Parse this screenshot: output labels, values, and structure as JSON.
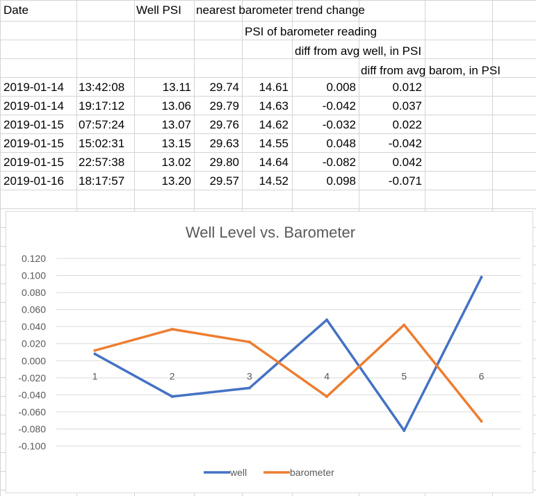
{
  "sheet": {
    "header_row_1": [
      "Date",
      "",
      "Well PSI",
      "nearest barometer trend change"
    ],
    "header_row_2": "PSI of barometer reading",
    "header_row_3": "diff from avg well, in PSI",
    "header_row_4": "diff from avg barom, in PSI",
    "rows": [
      [
        "2019-01-14",
        "13:42:08",
        "13.11",
        "29.74",
        "14.61",
        "0.008",
        "0.012"
      ],
      [
        "2019-01-14",
        "19:17:12",
        "13.06",
        "29.79",
        "14.63",
        "-0.042",
        "0.037"
      ],
      [
        "2019-01-15",
        "07:57:24",
        "13.07",
        "29.76",
        "14.62",
        "-0.032",
        "0.022"
      ],
      [
        "2019-01-15",
        "15:02:31",
        "13.15",
        "29.63",
        "14.55",
        "0.048",
        "-0.042"
      ],
      [
        "2019-01-15",
        "22:57:38",
        "13.02",
        "29.80",
        "14.64",
        "-0.082",
        "0.042"
      ],
      [
        "2019-01-16",
        "18:17:57",
        "13.20",
        "29.57",
        "14.52",
        "0.098",
        "-0.071"
      ]
    ]
  },
  "chart_data": {
    "type": "line",
    "title": "Well Level vs. Barometer",
    "x": [
      "1",
      "2",
      "3",
      "4",
      "5",
      "6"
    ],
    "ylim": [
      -0.1,
      0.12
    ],
    "y_ticks": [
      "0.120",
      "0.100",
      "0.080",
      "0.060",
      "0.040",
      "0.020",
      "0.000",
      "-0.020",
      "-0.040",
      "-0.060",
      "-0.080",
      "-0.100"
    ],
    "grid": true,
    "legend_position": "bottom",
    "series": [
      {
        "name": "well",
        "color": "#4472C4",
        "values": [
          0.008,
          -0.042,
          -0.032,
          0.048,
          -0.082,
          0.098
        ]
      },
      {
        "name": "barometer",
        "color": "#ED7D31",
        "values": [
          0.012,
          0.037,
          0.022,
          -0.042,
          0.042,
          -0.071
        ]
      }
    ]
  }
}
